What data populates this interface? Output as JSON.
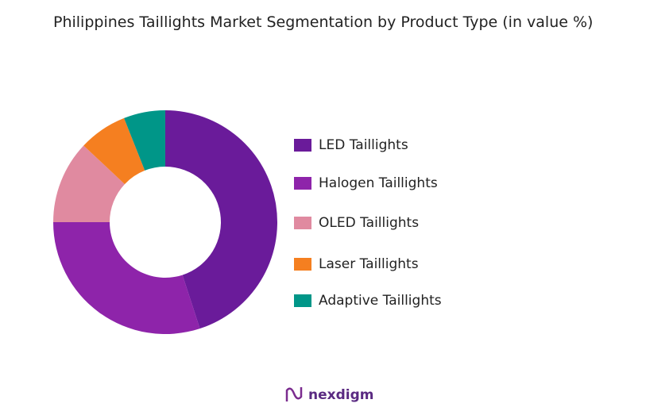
{
  "chart_data": {
    "type": "donut",
    "title": "Philippines Taillights Market Segmentation by Product Type (in value %)",
    "categories": [
      "LED Taillights",
      "Halogen Taillights",
      "OLED Taillights",
      "Laser Taillights",
      "Adaptive Taillights"
    ],
    "values": [
      45,
      30,
      12,
      7,
      6
    ],
    "colors": [
      "#6a1b9a",
      "#8e24aa",
      "#e08aa0",
      "#f57f20",
      "#009688"
    ],
    "legend": "right"
  },
  "footer": {
    "brand": "nexdigm"
  }
}
